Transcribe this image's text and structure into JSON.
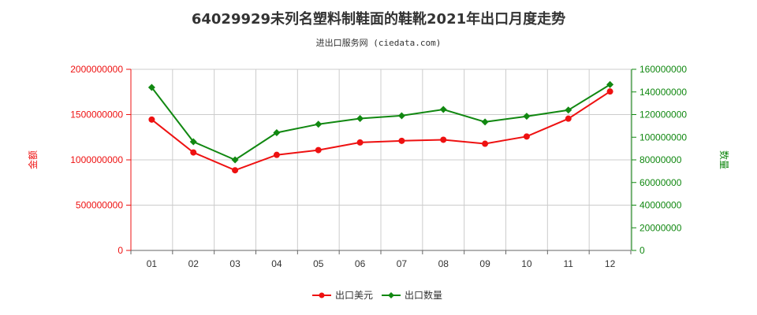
{
  "colors": {
    "usd": "#ee1111",
    "qty": "#118811",
    "grid": "#cccccc",
    "axis": "#666666"
  },
  "chart_data": {
    "type": "line",
    "title": "64029929未列名塑料制鞋面的鞋靴2021年出口月度走势",
    "subtitle": "进出口服务网 (ciedata.com)",
    "categories": [
      "01",
      "02",
      "03",
      "04",
      "05",
      "06",
      "07",
      "08",
      "09",
      "10",
      "11",
      "12"
    ],
    "left_axis": {
      "label": "金额",
      "ylim": [
        0,
        2000000000
      ],
      "ticks": [
        0,
        500000000,
        1000000000,
        1500000000,
        2000000000
      ],
      "tick_labels": [
        "0",
        "500000000",
        "1000000000",
        "1500000000",
        "2000000000"
      ]
    },
    "right_axis": {
      "label": "数量",
      "ylim": [
        0,
        160000000
      ],
      "ticks": [
        0,
        20000000,
        40000000,
        60000000,
        80000000,
        100000000,
        120000000,
        140000000,
        160000000
      ],
      "tick_labels": [
        "0",
        "20000000",
        "40000000",
        "60000000",
        "80000000",
        "100000000",
        "120000000",
        "140000000",
        "160000000"
      ]
    },
    "grid": true,
    "legend_position": "bottom-center",
    "series": [
      {
        "name": "出口美元",
        "axis": "left",
        "color": "#ee1111",
        "marker": "circle",
        "values": [
          1445000000,
          1082000000,
          885000000,
          1055000000,
          1108000000,
          1192000000,
          1210000000,
          1222000000,
          1178000000,
          1258000000,
          1455000000,
          1755000000
        ]
      },
      {
        "name": "出口数量",
        "axis": "right",
        "color": "#118811",
        "marker": "diamond",
        "values": [
          144000000,
          96000000,
          80000000,
          104000000,
          111500000,
          116500000,
          119000000,
          124500000,
          113500000,
          118500000,
          124000000,
          146500000
        ]
      }
    ]
  }
}
